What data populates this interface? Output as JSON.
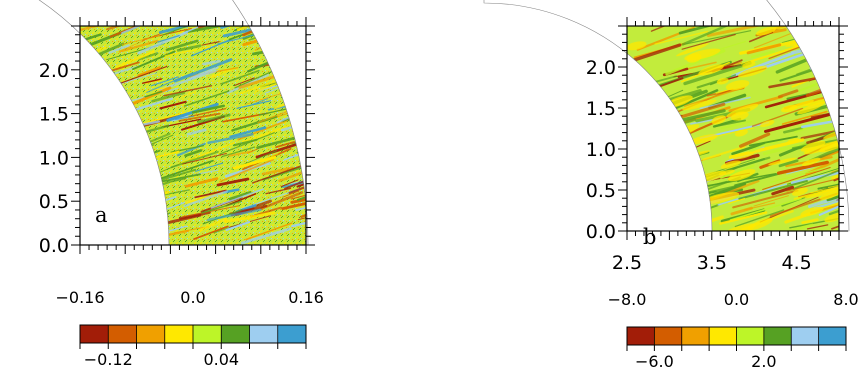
{
  "chart_data": [
    {
      "type": "heatmap",
      "panel_label": "a",
      "description_domain": "annular sector field map",
      "ylim": [
        0.0,
        2.5
      ],
      "y_ticks": [
        "0.0",
        "0.5",
        "1.0",
        "1.5",
        "2.0"
      ],
      "x_ticks": [],
      "colorbar": {
        "range": [
          -0.16,
          0.16
        ],
        "top_labels": [
          "−0.16",
          "0.0",
          "0.16"
        ],
        "bottom_labels": [
          "−0.12",
          "0.04"
        ],
        "colors": [
          "#a21d08",
          "#d35d00",
          "#f0a000",
          "#ffe800",
          "#bdf528",
          "#56a123",
          "#9ecef0",
          "#3c9ed0"
        ]
      }
    },
    {
      "type": "heatmap",
      "panel_label": "b",
      "ylim": [
        0.0,
        2.5
      ],
      "xlim": [
        2.5,
        5.0
      ],
      "y_ticks": [
        "0.0",
        "0.5",
        "1.0",
        "1.5",
        "2.0"
      ],
      "x_ticks": [
        "2.5",
        "3.5",
        "4.5"
      ],
      "colorbar": {
        "range": [
          -8.0,
          8.0
        ],
        "top_labels": [
          "−8.0",
          "0.0",
          "8.0"
        ],
        "bottom_labels": [
          "−6.0",
          "2.0"
        ],
        "colors": [
          "#a21d08",
          "#d35d00",
          "#f0a000",
          "#ffe800",
          "#bdf528",
          "#56a123",
          "#9ecef0",
          "#3c9ed0"
        ]
      }
    }
  ]
}
